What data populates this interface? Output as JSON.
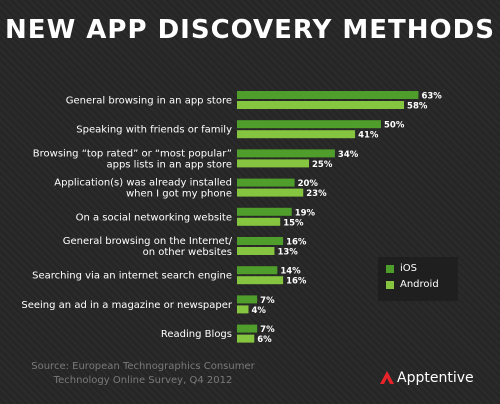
{
  "title": "NEW APP DISCOVERY METHODS",
  "colors": {
    "ios": "#4f9d2a",
    "android": "#86c53f",
    "background": "#262626",
    "brand_red": "#e8232a"
  },
  "chart_data": {
    "type": "bar",
    "orientation": "horizontal",
    "title": "NEW APP DISCOVERY METHODS",
    "categories": [
      [
        "General browsing in an app store"
      ],
      [
        "Speaking with friends or family"
      ],
      [
        "Browsing “top rated” or “most popular”",
        "apps lists in an app store"
      ],
      [
        "Application(s) was already installed",
        "when I got my phone"
      ],
      [
        "On a social networking website"
      ],
      [
        "General browsing on the Internet/",
        "on other websites"
      ],
      [
        "Searching via an internet search engine"
      ],
      [
        "Seeing an ad in a magazine or newspaper"
      ],
      [
        "Reading Blogs"
      ]
    ],
    "series": [
      {
        "name": "iOS",
        "values": [
          63,
          50,
          34,
          20,
          19,
          16,
          14,
          7,
          7
        ],
        "labels": [
          "63%",
          "50%",
          "34%",
          "20%",
          "19%",
          "16%",
          "14%",
          "7%",
          "7%"
        ]
      },
      {
        "name": "Android",
        "values": [
          58,
          41,
          25,
          23,
          15,
          13,
          16,
          4,
          6
        ],
        "labels": [
          "58%",
          "41%",
          "25%",
          "23%",
          "15%",
          "13%",
          "16%",
          "4%",
          "6%"
        ]
      }
    ],
    "xlim": [
      0,
      70
    ],
    "grid": false,
    "legend_position": "right"
  },
  "legend": {
    "ios": "iOS",
    "android": "Android"
  },
  "source": {
    "line1": "Source: European Technographics Consumer",
    "line2": "Technology Online Survey, Q4 2012"
  },
  "brand": {
    "name": "Apptentive"
  }
}
